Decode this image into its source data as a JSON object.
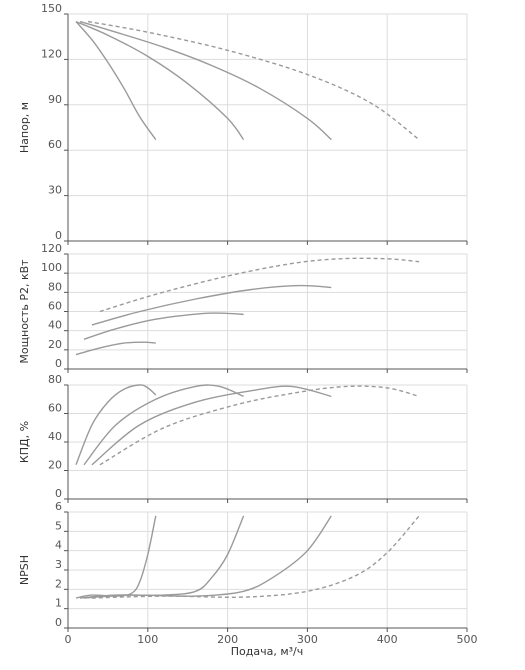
{
  "x_axis": {
    "label": "Подача, м³/ч",
    "ticks": [
      0,
      100,
      200,
      300,
      400,
      500
    ],
    "range": [
      0,
      500
    ]
  },
  "style": {
    "curve_color": "#9a9a9a",
    "grid_color": "#dddddd",
    "axis_color": "#555555",
    "series_line_styles": [
      "solid",
      "solid",
      "solid",
      "dashed"
    ]
  },
  "chart_data": [
    {
      "type": "line",
      "id": "head",
      "ylabel": "Напор, м",
      "ylim": [
        0,
        150
      ],
      "yticks": [
        0,
        30,
        60,
        90,
        120,
        150
      ],
      "xlim": [
        0,
        500
      ],
      "grid": true,
      "series": [
        {
          "x": [
            10,
            30,
            50,
            70,
            90,
            110
          ],
          "y": [
            145,
            133,
            118,
            101,
            82,
            67
          ]
        },
        {
          "x": [
            10,
            50,
            100,
            150,
            200,
            220
          ],
          "y": [
            145,
            136,
            122,
            104,
            81,
            67
          ]
        },
        {
          "x": [
            15,
            60,
            120,
            180,
            240,
            300,
            330
          ],
          "y": [
            145,
            138,
            128,
            116,
            101,
            81,
            67
          ]
        },
        {
          "x": [
            25,
            100,
            200,
            300,
            380,
            440
          ],
          "y": [
            145,
            138,
            126,
            110,
            91,
            67
          ]
        }
      ]
    },
    {
      "type": "line",
      "id": "power",
      "ylabel": "Мощность P2, кВт",
      "ylim": [
        0,
        120
      ],
      "yticks": [
        0,
        20,
        40,
        60,
        80,
        100,
        120
      ],
      "xlim": [
        0,
        500
      ],
      "grid": true,
      "series": [
        {
          "x": [
            10,
            40,
            70,
            95,
            110
          ],
          "y": [
            15,
            22,
            27,
            28,
            27
          ]
        },
        {
          "x": [
            20,
            60,
            110,
            170,
            200,
            220
          ],
          "y": [
            31,
            42,
            52,
            58,
            58,
            57
          ]
        },
        {
          "x": [
            30,
            90,
            160,
            230,
            290,
            330
          ],
          "y": [
            46,
            60,
            73,
            83,
            87,
            85
          ]
        },
        {
          "x": [
            40,
            110,
            200,
            280,
            340,
            400,
            440
          ],
          "y": [
            60,
            78,
            97,
            110,
            115,
            115,
            112
          ]
        }
      ]
    },
    {
      "type": "line",
      "id": "efficiency",
      "ylabel": "КПД, %",
      "ylim": [
        0,
        80
      ],
      "yticks": [
        0,
        20,
        40,
        60,
        80
      ],
      "xlim": [
        0,
        500
      ],
      "grid": true,
      "series": [
        {
          "x": [
            10,
            30,
            50,
            70,
            90,
            100,
            110
          ],
          "y": [
            24,
            52,
            68,
            77,
            80,
            78,
            73
          ]
        },
        {
          "x": [
            20,
            60,
            110,
            160,
            190,
            220
          ],
          "y": [
            24,
            52,
            70,
            79,
            79,
            72
          ]
        },
        {
          "x": [
            30,
            90,
            160,
            230,
            280,
            330
          ],
          "y": [
            24,
            52,
            68,
            76,
            79,
            72
          ]
        },
        {
          "x": [
            40,
            120,
            210,
            290,
            350,
            400,
            440
          ],
          "y": [
            24,
            50,
            66,
            75,
            79,
            78,
            72
          ]
        }
      ]
    },
    {
      "type": "line",
      "id": "npsh",
      "ylabel": "NPSH",
      "ylim": [
        0,
        6
      ],
      "yticks": [
        0,
        1,
        2,
        3,
        4,
        5,
        6
      ],
      "xlim": [
        0,
        500
      ],
      "grid": true,
      "series": [
        {
          "x": [
            10,
            30,
            60,
            80,
            90,
            100,
            110
          ],
          "y": [
            1.55,
            1.7,
            1.65,
            1.8,
            2.4,
            3.8,
            5.8
          ]
        },
        {
          "x": [
            15,
            60,
            120,
            160,
            180,
            200,
            220
          ],
          "y": [
            1.55,
            1.7,
            1.7,
            1.9,
            2.6,
            3.8,
            5.8
          ]
        },
        {
          "x": [
            20,
            80,
            160,
            220,
            260,
            300,
            330
          ],
          "y": [
            1.55,
            1.7,
            1.65,
            1.9,
            2.7,
            4.0,
            5.8
          ]
        },
        {
          "x": [
            30,
            120,
            220,
            300,
            360,
            400,
            440
          ],
          "y": [
            1.55,
            1.65,
            1.6,
            1.9,
            2.7,
            3.9,
            5.8
          ]
        }
      ]
    }
  ]
}
